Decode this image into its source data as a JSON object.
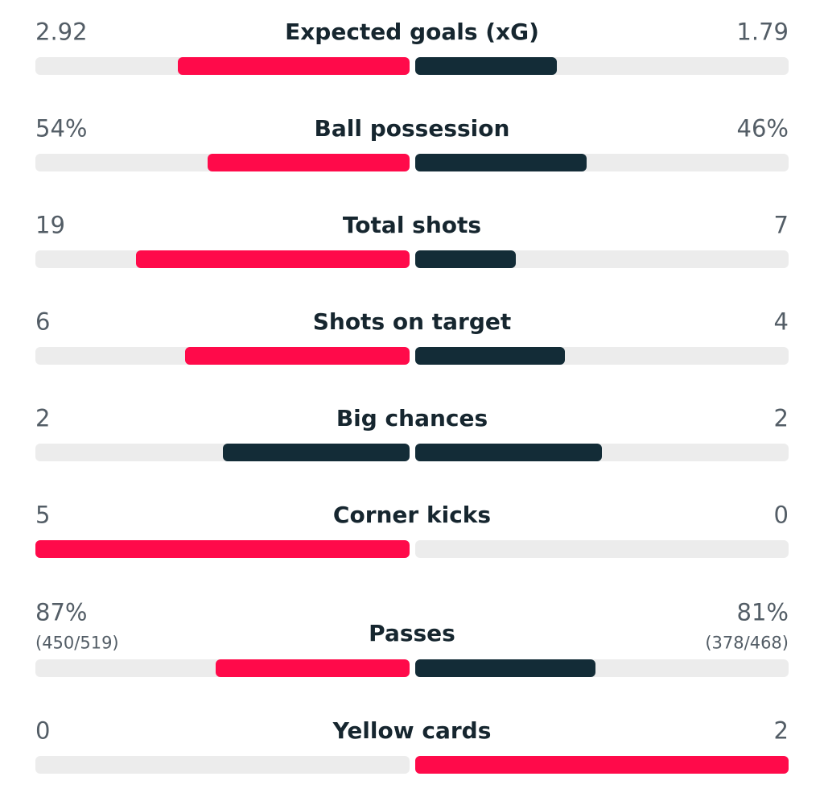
{
  "stats": [
    {
      "label": "Expected goals (xG)",
      "home": 2.92,
      "away": 1.79,
      "home_color": "#ff0a4a",
      "away_color": "#132c37"
    },
    {
      "label": "Ball possession",
      "home": {
        "value": 54,
        "label": "54%"
      },
      "away": {
        "value": 46,
        "label": "46%"
      },
      "home_color": "#ff0a4a",
      "away_color": "#132c37"
    },
    {
      "label": "Total shots",
      "home": 19,
      "away": 7,
      "home_color": "#ff0a4a",
      "away_color": "#132c37"
    },
    {
      "label": "Shots on target",
      "home": 6,
      "away": 4,
      "home_color": "#ff0a4a",
      "away_color": "#132c37"
    },
    {
      "label": "Big chances",
      "home": 2,
      "away": 2,
      "home_color": "#132c37",
      "away_color": "#132c37"
    },
    {
      "label": "Corner kicks",
      "home": 5,
      "away": 0,
      "home_color": "#ff0a4a",
      "away_color": "#132c37"
    },
    {
      "label": "Passes",
      "home": {
        "value": 87,
        "label": "87%",
        "detail": "(450/519)"
      },
      "away": {
        "value": 81,
        "label": "81%",
        "detail": "(378/468)"
      },
      "home_color": "#ff0a4a",
      "away_color": "#132c37"
    },
    {
      "label": "Yellow cards",
      "home": 0,
      "away": 2,
      "home_color": "#132c37",
      "away_color": "#ff0a4a"
    }
  ]
}
